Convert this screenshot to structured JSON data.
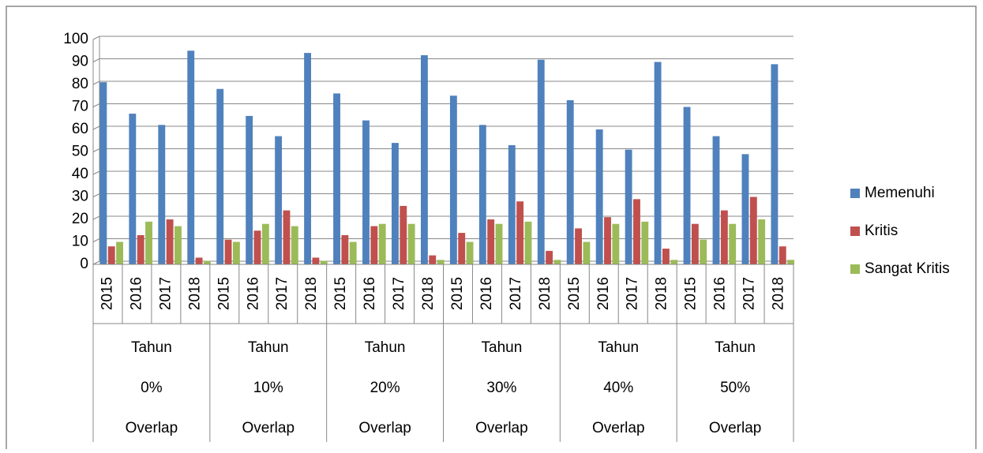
{
  "chart_data": {
    "type": "bar",
    "categories": [
      "2015",
      "2016",
      "2017",
      "2018",
      "2015",
      "2016",
      "2017",
      "2018",
      "2015",
      "2016",
      "2017",
      "2018",
      "2015",
      "2016",
      "2017",
      "2018",
      "2015",
      "2016",
      "2017",
      "2018",
      "2015",
      "2016",
      "2017",
      "2018"
    ],
    "groups": [
      [
        "Tahun",
        "0%",
        "Overlap"
      ],
      [
        "Tahun",
        "10%",
        "Overlap"
      ],
      [
        "Tahun",
        "20%",
        "Overlap"
      ],
      [
        "Tahun",
        "30%",
        "Overlap"
      ],
      [
        "Tahun",
        "40%",
        "Overlap"
      ],
      [
        "Tahun",
        "50%",
        "Overlap"
      ]
    ],
    "series": [
      {
        "name": "Memenuhi",
        "color": "#4f81bd",
        "values": [
          81,
          67,
          62,
          95,
          78,
          66,
          57,
          94,
          76,
          64,
          54,
          93,
          75,
          62,
          53,
          91,
          73,
          60,
          51,
          90,
          70,
          57,
          49,
          89
        ]
      },
      {
        "name": "Kritis",
        "color": "#c0504d",
        "values": [
          8,
          13,
          20,
          3,
          11,
          15,
          24,
          3,
          13,
          17,
          26,
          4,
          14,
          20,
          28,
          6,
          16,
          21,
          29,
          7,
          18,
          24,
          30,
          8
        ]
      },
      {
        "name": "Sangat Kritis",
        "color": "#9bbb59",
        "values": [
          10,
          19,
          17,
          1.5,
          10,
          18,
          17,
          1.5,
          10,
          18,
          18,
          2,
          10,
          18,
          19,
          2,
          10,
          18,
          19,
          2,
          11,
          18,
          20,
          2
        ]
      }
    ],
    "ylim": [
      0,
      100
    ],
    "yticks": [
      0,
      10,
      20,
      30,
      40,
      50,
      60,
      70,
      80,
      90,
      100
    ],
    "grid": true,
    "legend": "right"
  }
}
